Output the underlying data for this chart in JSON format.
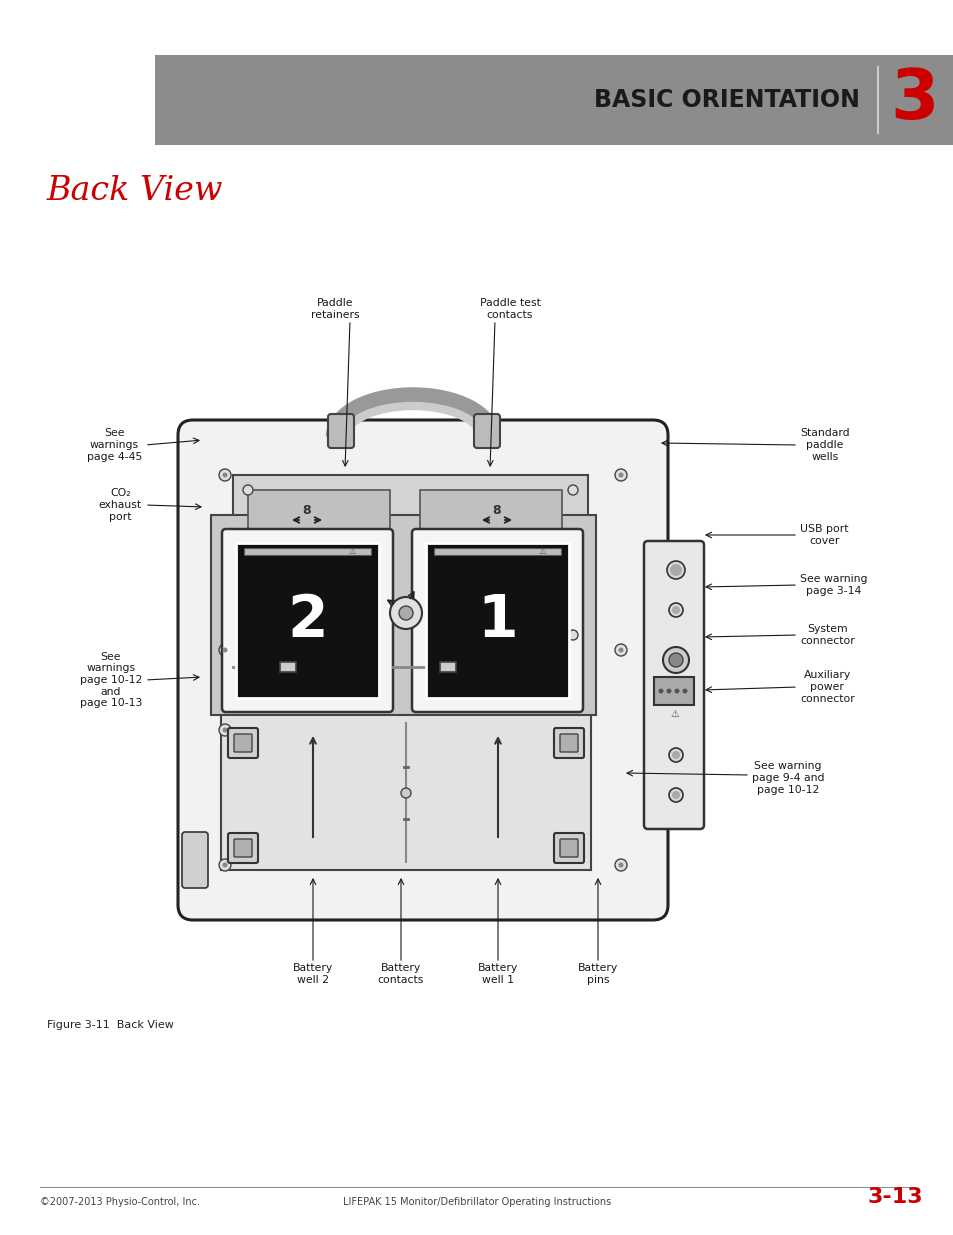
{
  "page_bg": "#ffffff",
  "header_bg": "#8c8c8c",
  "header_text": "BASIC ORIENTATION",
  "header_number": "3",
  "header_text_color": "#1a1a1a",
  "header_number_color": "#cc0000",
  "section_title": "Back View",
  "section_title_color": "#cc0000",
  "figure_caption": "Figure 3-11  Back View",
  "footer_left": "©2007-2013 Physio-Control, Inc.",
  "footer_center": "LIFEPAK 15 Monitor/Defibrillator Operating Instructions",
  "footer_page": "3-13",
  "footer_page_color": "#cc0000",
  "labels": {
    "paddle_retainers": "Paddle\nretainers",
    "paddle_test": "Paddle test\ncontacts",
    "see_warnings_445": "See\nwarnings\npage 4-45",
    "co2_port": "CO₂\nexhaust\nport",
    "see_warnings_1012": "See\nwarnings\npage 10-12\nand\npage 10-13",
    "standard_paddle": "Standard\npaddle\nwells",
    "usb_port": "USB port\ncover",
    "see_warning_314": "See warning\npage 3-14",
    "system_connector": "System\nconnector",
    "aux_power": "Auxiliary\npower\nconnector",
    "see_warning_94": "See warning\npage 9-4 and\npage 10-12",
    "battery_well2": "Battery\nwell 2",
    "battery_contacts": "Battery\ncontacts",
    "battery_well1": "Battery\nwell 1",
    "battery_pins": "Battery\npins"
  }
}
